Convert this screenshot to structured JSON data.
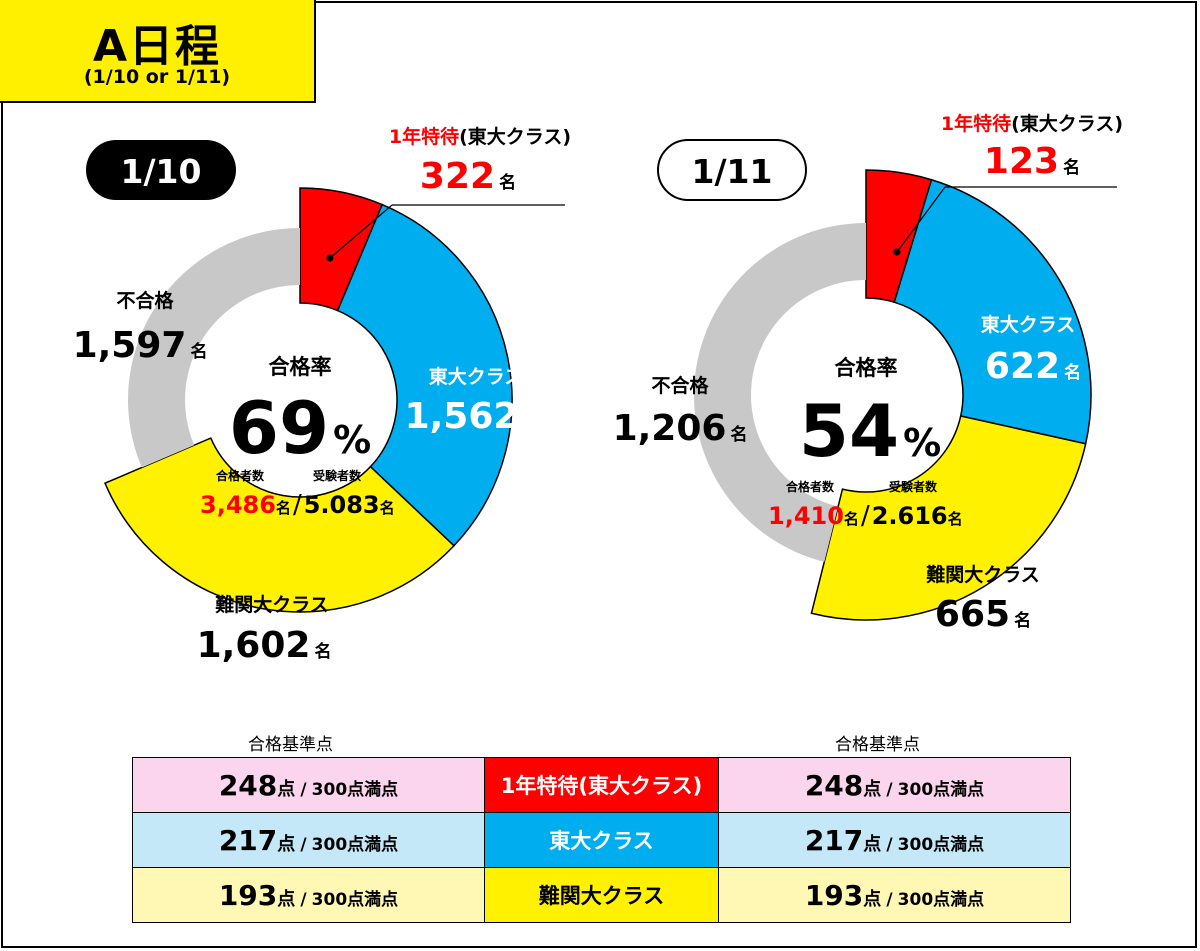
{
  "header": {
    "title": "A日程",
    "subtitle": "(1/10 or 1/11)"
  },
  "colors": {
    "special": "#ff0000",
    "todai": "#00aeef",
    "nankan": "#fff100",
    "fail": "#c8c8c8",
    "pink": "#fbd5ee",
    "lightblue": "#c5e8f8",
    "lightyellow": "#fff8b5"
  },
  "chart_data": [
    {
      "type": "pie",
      "variant": "donut",
      "date_label": "1/10",
      "center": {
        "rate_label": "合格率",
        "rate_value": "69",
        "rate_unit": "%",
        "passed_label": "合格者数",
        "passed": "3,486",
        "examinees_label": "受験者数",
        "examinees": "5.083",
        "unit": "名",
        "slash": "/"
      },
      "segments": [
        {
          "label": "1年特待(東大クラス)",
          "value": 322,
          "display": "322",
          "unit": "名"
        },
        {
          "label": "東大クラス",
          "value": 1562,
          "display": "1,562",
          "unit": "名"
        },
        {
          "label": "難関大クラス",
          "value": 1602,
          "display": "1,602",
          "unit": "名"
        },
        {
          "label": "不合格",
          "value": 1597,
          "display": "1,597",
          "unit": "名"
        }
      ]
    },
    {
      "type": "pie",
      "variant": "donut",
      "date_label": "1/11",
      "center": {
        "rate_label": "合格率",
        "rate_value": "54",
        "rate_unit": "%",
        "passed_label": "合格者数",
        "passed": "1,410",
        "examinees_label": "受験者数",
        "examinees": "2.616",
        "unit": "名",
        "slash": "/"
      },
      "segments": [
        {
          "label": "1年特待(東大クラス)",
          "value": 123,
          "display": "123",
          "unit": "名"
        },
        {
          "label": "東大クラス",
          "value": 622,
          "display": "622",
          "unit": "名"
        },
        {
          "label": "難関大クラス",
          "value": 665,
          "display": "665",
          "unit": "名"
        },
        {
          "label": "不合格",
          "value": 1206,
          "display": "1,206",
          "unit": "名"
        }
      ]
    }
  ],
  "scores": {
    "heading_left": "合格基準点",
    "heading_right": "合格基準点",
    "point_unit": "点",
    "separator": "/",
    "max_label": "300点満点",
    "rows": [
      {
        "category": "1年特待(東大クラス)",
        "left": "248",
        "right": "248"
      },
      {
        "category": "東大クラス",
        "left": "217",
        "right": "217"
      },
      {
        "category": "難関大クラス",
        "left": "193",
        "right": "193"
      }
    ]
  }
}
